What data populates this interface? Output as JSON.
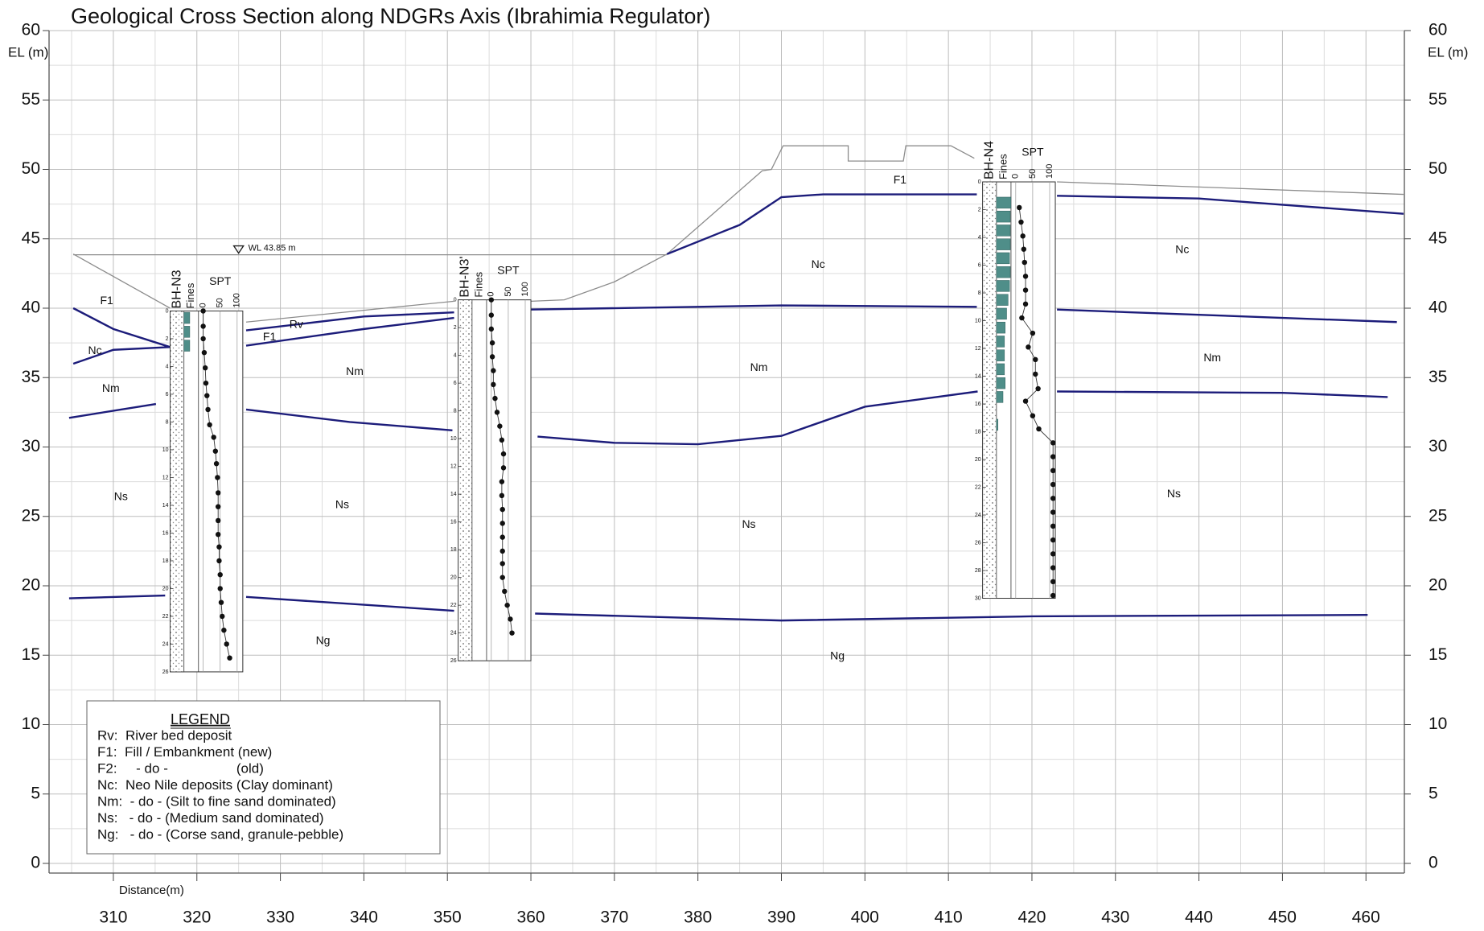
{
  "chart_data": {
    "type": "line",
    "title": "Geological Cross Section along NDGRs Axis (Ibrahimia Regulator)",
    "xlabel": "Distance(m)",
    "ylabel": "EL (m)",
    "xlim": [
      302.3,
      464.6
    ],
    "ylim": [
      0,
      60
    ],
    "xticks": [
      310,
      320,
      330,
      340,
      350,
      360,
      370,
      380,
      390,
      400,
      410,
      420,
      430,
      440,
      450,
      460
    ],
    "yticks": [
      0,
      5,
      10,
      15,
      20,
      25,
      30,
      35,
      40,
      45,
      50,
      55,
      60
    ],
    "xminor": [
      305,
      315,
      325,
      335,
      345,
      355,
      365,
      375,
      385,
      395,
      405,
      415,
      425,
      435,
      445,
      455
    ],
    "yminor": [
      2.5,
      7.5,
      12.5,
      17.5,
      22.5,
      27.5,
      32.5,
      37.5,
      42.5,
      47.5,
      52.5,
      57.5
    ],
    "grid": true,
    "series": [
      {
        "color": "#1c1c7a",
        "x": [
          305.2,
          310,
          316.8
        ],
        "values": [
          40,
          38.5,
          37.2
        ]
      },
      {
        "color": "#1c1c7a",
        "x": [
          305.2,
          310,
          316.8
        ],
        "values": [
          36,
          37.0,
          37.2
        ]
      },
      {
        "color": "#1c1c7a",
        "x": [
          325.9,
          340,
          350.8
        ],
        "values": [
          38.4,
          39.4,
          39.7
        ]
      },
      {
        "color": "#1c1c7a",
        "x": [
          325.9,
          340,
          350.8
        ],
        "values": [
          37.3,
          38.5,
          39.3
        ]
      },
      {
        "color": "#1c1c7a",
        "x": [
          304.7,
          315.1,
          null,
          325.9,
          338.3,
          350.6,
          null,
          360.8,
          370,
          380,
          390,
          400,
          413.5,
          null,
          423,
          450,
          462.6
        ],
        "values": [
          32.1,
          33.1,
          null,
          32.7,
          31.8,
          31.2,
          null,
          30.75,
          30.3,
          30.2,
          30.8,
          32.9,
          34.0,
          null,
          34.0,
          33.9,
          33.6
        ]
      },
      {
        "color": "#1c1c7a",
        "x": [
          304.7,
          316.2,
          null,
          325.9,
          350.8,
          null,
          360.5,
          390,
          420,
          460.2
        ],
        "values": [
          19.1,
          19.3,
          null,
          19.2,
          18.2,
          null,
          18.0,
          17.5,
          17.8,
          17.9
        ]
      },
      {
        "color": "#1c1c7a",
        "x": [
          359.9,
          390,
          413.4,
          null,
          423,
          463.7
        ],
        "values": [
          39.9,
          40.2,
          40.1,
          null,
          39.9,
          39.0
        ]
      },
      {
        "color": "#1c1c7a",
        "x": [
          376.3,
          385,
          390,
          395,
          413.4,
          null,
          423,
          440,
          464.5
        ],
        "values": [
          43.9,
          46.0,
          48.0,
          48.2,
          48.2,
          null,
          48.1,
          47.9,
          46.8
        ]
      }
    ],
    "ground_surface": {
      "color": "#8c8c8c",
      "x": [
        305.2,
        316.8,
        null,
        325.9,
        350.8,
        null,
        360,
        364,
        370,
        376.3,
        387.7,
        388.8,
        390.2,
        398,
        398,
        404.6,
        404.9,
        410.3,
        413.1,
        null,
        423,
        464.5
      ],
      "values": [
        43.9,
        40.0,
        null,
        39.0,
        40.5,
        null,
        40.5,
        40.6,
        41.9,
        43.9,
        49.9,
        50.0,
        51.7,
        51.7,
        50.6,
        50.6,
        51.7,
        51.7,
        50.8,
        null,
        49.1,
        48.2
      ]
    },
    "water_level": {
      "label": "WL 43.85 m",
      "value": 43.85,
      "x": [
        305.2,
        376.3
      ],
      "marker_x": 325
    },
    "zone_labels": [
      {
        "text": "F1",
        "x": 309.2,
        "y": 40.5
      },
      {
        "text": "Nc",
        "x": 307.8,
        "y": 36.9
      },
      {
        "text": "Nm",
        "x": 309.7,
        "y": 34.2
      },
      {
        "text": "Ns",
        "x": 310.9,
        "y": 26.4
      },
      {
        "text": "Rv",
        "x": 331.9,
        "y": 38.8
      },
      {
        "text": "F1",
        "x": 328.7,
        "y": 37.9
      },
      {
        "text": "Nm",
        "x": 338.9,
        "y": 35.4
      },
      {
        "text": "Ns",
        "x": 337.4,
        "y": 25.8
      },
      {
        "text": "Ng",
        "x": 335.1,
        "y": 16.0
      },
      {
        "text": "Nc",
        "x": 394.4,
        "y": 43.1
      },
      {
        "text": "Nm",
        "x": 387.3,
        "y": 35.7
      },
      {
        "text": "Ns",
        "x": 386.1,
        "y": 24.4
      },
      {
        "text": "Ng",
        "x": 396.7,
        "y": 14.9
      },
      {
        "text": "F1",
        "x": 404.2,
        "y": 49.2
      },
      {
        "text": "Nc",
        "x": 438.0,
        "y": 44.2
      },
      {
        "text": "Nm",
        "x": 441.6,
        "y": 36.4
      },
      {
        "text": "Ns",
        "x": 437.0,
        "y": 26.6
      }
    ],
    "boreholes": [
      {
        "name": "BH-N3",
        "x": [
          316.8,
          325.5
        ],
        "top": 39.8,
        "depth_ticks": [
          0,
          2,
          4,
          6,
          8,
          10,
          12,
          14,
          16,
          18,
          20,
          22,
          24,
          26
        ],
        "fines_label": "Fines",
        "spt_label": "SPT",
        "spt_ticks": [
          0,
          50,
          100
        ],
        "fines_depth": [
          0.5,
          1.5,
          2.5
        ],
        "fines_values": [
          40,
          40,
          40
        ],
        "spt_elev": [
          39.8,
          38.7,
          37.8,
          36.8,
          35.7,
          34.6,
          33.7,
          32.7,
          31.6,
          30.7,
          29.7,
          28.8,
          27.8,
          26.7,
          25.7,
          24.7,
          23.7,
          22.8,
          21.8,
          20.8,
          19.8,
          18.8,
          17.8,
          16.8,
          15.8,
          14.8
        ],
        "spt_n": [
          0,
          0,
          0,
          3,
          6,
          8,
          11,
          14,
          19,
          31,
          36,
          39,
          42,
          44,
          44,
          44,
          44,
          47,
          47,
          50,
          50,
          53,
          56,
          61,
          69,
          78
        ]
      },
      {
        "name": "BH-N3'",
        "x": [
          351.3,
          360.0
        ],
        "top": 40.6,
        "depth_ticks": [
          0,
          2,
          4,
          6,
          8,
          10,
          12,
          14,
          16,
          18,
          20,
          22,
          24,
          26
        ],
        "fines_label": "Fines",
        "spt_label": "SPT",
        "spt_ticks": [
          0,
          50,
          100
        ],
        "fines_depth": [],
        "fines_values": [],
        "spt_elev": [
          40.6,
          39.5,
          38.5,
          37.5,
          36.5,
          35.5,
          34.5,
          33.5,
          32.5,
          31.5,
          30.5,
          29.5,
          28.5,
          27.5,
          26.5,
          25.5,
          24.5,
          23.5,
          22.5,
          21.6,
          20.6,
          19.6,
          18.6,
          17.6,
          16.6
        ],
        "spt_n": [
          0,
          0,
          0,
          3,
          3,
          6,
          6,
          11,
          17,
          25,
          31,
          36,
          36,
          31,
          31,
          33,
          33,
          33,
          33,
          33,
          33,
          39,
          47,
          56,
          61
        ]
      },
      {
        "name": "BH-N4",
        "x": [
          414.1,
          422.8
        ],
        "top": 49.1,
        "depth_ticks": [
          0,
          2,
          4,
          6,
          8,
          10,
          12,
          14,
          16,
          18,
          20,
          22,
          24,
          26,
          28,
          30
        ],
        "fines_label": "Fines",
        "spt_label": "SPT",
        "spt_ticks": [
          0,
          50,
          100
        ],
        "fines_depth": [
          1.5,
          2.5,
          3.5,
          4.5,
          5.5,
          6.5,
          7.5,
          8.5,
          9.5,
          10.5,
          11.5,
          12.5,
          13.5,
          14.5,
          15.5,
          17.5
        ],
        "fines_values": [
          100,
          95,
          95,
          95,
          90,
          95,
          90,
          80,
          70,
          60,
          55,
          55,
          55,
          60,
          45,
          10
        ],
        "spt_elev": [
          47.25,
          46.2,
          45.2,
          44.25,
          43.3,
          42.3,
          41.3,
          40.3,
          39.3,
          38.2,
          37.2,
          36.3,
          35.25,
          34.2,
          33.3,
          32.25,
          31.3,
          30.3,
          29.3,
          28.3,
          27.3,
          26.3,
          25.3,
          24.3,
          23.3,
          22.3,
          21.3,
          20.3,
          19.3
        ],
        "spt_n": [
          10.5,
          15.8,
          21,
          23.7,
          26,
          29,
          29,
          29,
          18,
          50,
          37,
          58,
          58,
          66,
          29,
          50,
          68,
          110,
          110,
          110,
          110,
          110,
          110,
          110,
          110,
          110,
          110,
          110,
          110
        ]
      }
    ],
    "legend": {
      "title": "LEGEND",
      "items": [
        "Rv:  River bed deposit",
        "F1:  Fill / Embankment (new)",
        "F2:     - do -                  (old)",
        "Nc:  Neo Nile deposits (Clay dominant)",
        "Nm:  - do - (Silt to fine sand dominated)",
        "Ns:   - do - (Medium sand dominated)",
        "Ng:   - do - (Corse sand, granule-pebble)"
      ]
    }
  }
}
